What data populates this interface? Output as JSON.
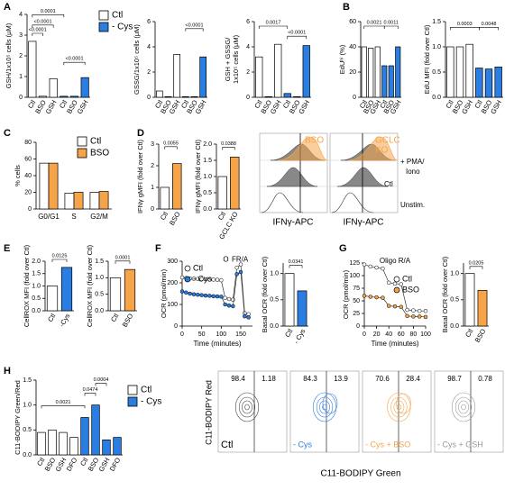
{
  "panel_labels": [
    "A",
    "B",
    "C",
    "D",
    "E",
    "F",
    "G",
    "H"
  ],
  "chart_data": [
    {
      "type": "bar",
      "ylabel": "GSH/1x10⁵ cells (μM)",
      "categories": [
        "Ctl",
        "BSO",
        "GSH",
        "Ctl",
        "BSO",
        "GSH"
      ],
      "series": [
        {
          "name": "Ctl",
          "color": "#ffffff",
          "values": [
            2.7,
            0.05,
            0.9,
            null,
            null,
            null
          ]
        },
        {
          "name": "- Cys",
          "color": "#2a7de1",
          "values": [
            null,
            null,
            null,
            0.05,
            0.05,
            0.95
          ]
        }
      ],
      "ylim": [
        0,
        4
      ],
      "yticks": [
        0,
        1,
        2,
        3,
        4
      ],
      "annotations": [
        "0.0001",
        "<0.0001",
        "<0.0001",
        "<0.0001"
      ]
    },
    {
      "type": "bar",
      "ylabel": "GSSG/1x10⁵ cells (μM)",
      "categories": [
        "Ctl",
        "BSO",
        "GSH",
        "Ctl",
        "BSO",
        "GSH"
      ],
      "series": [
        {
          "color": "#ffffff",
          "values": [
            0.5,
            0.05,
            3.4,
            null,
            null,
            null
          ]
        },
        {
          "color": "#2a7de1",
          "values": [
            null,
            null,
            null,
            0.05,
            0.05,
            3.2
          ]
        }
      ],
      "ylim": [
        0,
        6
      ],
      "yticks": [
        0,
        2,
        4,
        6
      ],
      "annotations": [
        "<0.0001"
      ]
    },
    {
      "type": "bar",
      "ylabel": [
        "GSH + GSSG/",
        "1x10⁵ cells (μM)"
      ],
      "categories": [
        "Ctl",
        "BSO",
        "GSH",
        "Ctl",
        "BSO",
        "GSH"
      ],
      "series": [
        {
          "color": "#ffffff",
          "values": [
            3.2,
            0.05,
            4.2,
            null,
            null,
            null
          ]
        },
        {
          "color": "#2a7de1",
          "values": [
            null,
            null,
            null,
            0.3,
            0.05,
            4.1
          ]
        }
      ],
      "ylim": [
        0,
        6
      ],
      "yticks": [
        0,
        2,
        4,
        6
      ],
      "annotations": [
        "0.0017",
        "<0.0001"
      ]
    },
    {
      "type": "bar",
      "ylabel": "EdUʰⁱ (%)",
      "categories": [
        "Ctl",
        "BSO",
        "GSH",
        "Ctl",
        "BSO",
        "GSH"
      ],
      "series": [
        {
          "color": "#ffffff",
          "values": [
            40,
            39,
            40,
            null,
            null,
            null
          ]
        },
        {
          "color": "#2a7de1",
          "values": [
            null,
            null,
            null,
            25,
            25,
            40
          ]
        }
      ],
      "ylim": [
        0,
        60
      ],
      "yticks": [
        0,
        20,
        40,
        60
      ],
      "annotations": [
        "0.0021",
        "0.0011"
      ]
    },
    {
      "type": "bar",
      "ylabel": "EdU MFI (fold over Ctl)",
      "categories": [
        "Ctl",
        "BSO",
        "GSH",
        "Ctl",
        "BSO",
        "GSH"
      ],
      "series": [
        {
          "color": "#ffffff",
          "values": [
            1.0,
            1.0,
            1.05,
            null,
            null,
            null
          ]
        },
        {
          "color": "#2a7de1",
          "values": [
            null,
            null,
            null,
            0.58,
            0.56,
            0.6
          ]
        }
      ],
      "ylim": [
        0,
        1.5
      ],
      "yticks": [
        {
          "value": 0,
          "label": "0.0"
        },
        0.5,
        {
          "value": 1,
          "label": "1.0"
        },
        1.5
      ],
      "annotations": [
        "0.0003",
        "0.0048"
      ]
    },
    {
      "type": "bar",
      "ylabel": "% cells",
      "categories": [
        "G0/G1",
        "S",
        "G2/M"
      ],
      "series": [
        {
          "name": "Ctl",
          "color": "#ffffff",
          "values": [
            55,
            19,
            20
          ]
        },
        {
          "name": "BSO",
          "color": "#f5a44a",
          "values": [
            55,
            20,
            21
          ]
        }
      ],
      "ylim": [
        0,
        80
      ],
      "yticks": [
        0,
        20,
        40,
        60,
        80
      ]
    },
    {
      "type": "bar",
      "ylabel": "IFNγ gMFI (fold over Ctl)",
      "categories": [
        "Ctl",
        "BSO"
      ],
      "series": [
        {
          "color": "#ffffff",
          "values": [
            1.0,
            null
          ]
        },
        {
          "color": "#f5a44a",
          "values": [
            null,
            2.1
          ]
        }
      ],
      "ylim": [
        0,
        3
      ],
      "yticks": [
        0,
        1,
        2,
        3
      ],
      "annotations": [
        "0.0055"
      ]
    },
    {
      "type": "bar",
      "ylabel": "IFNγ gMFI (fold over Ctl)",
      "categories": [
        "Ctl",
        "GCLC KO"
      ],
      "series": [
        {
          "color": "#ffffff",
          "values": [
            1.0,
            null
          ]
        },
        {
          "color": "#f5a44a",
          "values": [
            null,
            1.6
          ]
        }
      ],
      "ylim": [
        0,
        2
      ],
      "yticks": [
        {
          "value": 0,
          "label": "0.0"
        },
        0.5,
        {
          "value": 1,
          "label": "1.0"
        },
        1.5,
        {
          "value": 2,
          "label": "2.0"
        }
      ],
      "annotations": [
        "0.0388"
      ]
    },
    {
      "type": "bar",
      "ylabel": "CellROX MFI (fold over Ctl)",
      "categories": [
        "Ctl",
        "-Cys"
      ],
      "series": [
        {
          "color": "#ffffff",
          "values": [
            1.0,
            null
          ]
        },
        {
          "color": "#2a7de1",
          "values": [
            null,
            1.75
          ]
        }
      ],
      "ylim": [
        0,
        2
      ],
      "yticks": [
        {
          "value": 0,
          "label": "0.0"
        },
        0.5,
        {
          "value": 1,
          "label": "1.0"
        },
        1.5,
        {
          "value": 2,
          "label": "2.0"
        }
      ],
      "annotations": [
        "0.0125"
      ]
    },
    {
      "type": "bar",
      "ylabel": "CellROX MFI (fold over Ctl)",
      "categories": [
        "Ctl",
        "BSO"
      ],
      "series": [
        {
          "color": "#ffffff",
          "values": [
            1.0,
            null
          ]
        },
        {
          "color": "#f5a44a",
          "values": [
            null,
            1.25
          ]
        }
      ],
      "ylim": [
        0,
        1.5
      ],
      "yticks": [
        {
          "value": 0,
          "label": "0.0"
        },
        0.5,
        {
          "value": 1,
          "label": "1.0"
        },
        1.5
      ],
      "annotations": [
        "0.0001"
      ]
    },
    {
      "type": "line",
      "ylabel": "OCR (pmol/min)",
      "xlabel": "Time (minutes)",
      "x": [
        0,
        10,
        20,
        30,
        40,
        50,
        60,
        70,
        80,
        90,
        100,
        110,
        120,
        130,
        140,
        150,
        160,
        170
      ],
      "series": [
        {
          "name": "Ctl",
          "color": "#ffffff",
          "values": [
            225,
            222,
            220,
            219,
            218,
            217,
            216,
            215,
            215,
            214,
            212,
            130,
            125,
            122,
            270,
            285,
            60,
            55
          ]
        },
        {
          "name": "- Cys",
          "color": "#2a7de1",
          "values": [
            160,
            155,
            150,
            147,
            145,
            143,
            141,
            140,
            138,
            137,
            136,
            100,
            95,
            92,
            240,
            250,
            45,
            40
          ]
        }
      ],
      "xlim": [
        0,
        180
      ],
      "xticks": [
        0,
        50,
        100,
        150
      ],
      "ylim": [
        0,
        300
      ],
      "yticks": [
        0,
        100,
        200,
        300
      ],
      "annotations": [
        "O",
        "FR/A"
      ]
    },
    {
      "type": "bar",
      "ylabel": "Basal OCR (fold over Ctl)",
      "categories": [
        "Ctl",
        "- Cys"
      ],
      "series": [
        {
          "color": "#ffffff",
          "values": [
            1.0,
            null
          ]
        },
        {
          "color": "#2a7de1",
          "values": [
            null,
            0.67
          ]
        }
      ],
      "ylim": [
        0,
        1.2
      ],
      "yticks": [
        {
          "value": 0,
          "label": "0.0"
        },
        0.5,
        {
          "value": 1,
          "label": "1.0"
        }
      ],
      "annotations": [
        "0.0341"
      ]
    },
    {
      "type": "line",
      "ylabel": "OCR (pmol/min)",
      "xlabel": "Time (minutes)",
      "x": [
        0,
        10,
        20,
        30,
        40,
        50,
        60,
        70,
        80,
        90,
        100
      ],
      "series": [
        {
          "name": "Ctl",
          "color": "#ffffff",
          "values": [
            122,
            118,
            116,
            114,
            86,
            84,
            83,
            32,
            31,
            30,
            30
          ]
        },
        {
          "name": "BSO",
          "color": "#f5a44a",
          "values": [
            60,
            58,
            57,
            56,
            40,
            39,
            38,
            20,
            19,
            19,
            18
          ]
        }
      ],
      "xlim": [
        0,
        100
      ],
      "xticks": [
        0,
        20,
        40,
        60,
        80,
        100
      ],
      "ylim": [
        0,
        125
      ],
      "yticks": [
        0,
        25,
        50,
        75,
        100,
        125
      ],
      "annotations": [
        "Oligo R/A"
      ]
    },
    {
      "type": "bar",
      "ylabel": "Basal OCR (fold over Ctl)",
      "categories": [
        "Ctl",
        "BSO"
      ],
      "series": [
        {
          "color": "#ffffff",
          "values": [
            1.0,
            null
          ]
        },
        {
          "color": "#f5a44a",
          "values": [
            null,
            0.68
          ]
        }
      ],
      "ylim": [
        0,
        1.2
      ],
      "yticks": [
        {
          "value": 0,
          "label": "0.0"
        },
        0.5,
        {
          "value": 1,
          "label": "1.0"
        }
      ],
      "annotations": [
        "0.0205"
      ]
    },
    {
      "type": "bar",
      "ylabel": "C11-BODIPY Green/Red",
      "categories": [
        "Ctl",
        "BSO",
        "GSH",
        "DFO",
        "Ctl",
        "BSO",
        "GSH",
        "DFO"
      ],
      "series": [
        {
          "name": "Ctl",
          "color": "#ffffff",
          "values": [
            0.45,
            0.5,
            0.45,
            0.35,
            null,
            null,
            null,
            null
          ]
        },
        {
          "name": "- Cys",
          "color": "#2a7de1",
          "values": [
            null,
            null,
            null,
            null,
            0.75,
            1.0,
            0.3,
            0.35
          ]
        }
      ],
      "ylim": [
        0,
        1.5
      ],
      "yticks": [
        {
          "value": 0,
          "label": "0.0"
        },
        0.5,
        {
          "value": 1,
          "label": "1.0"
        },
        1.5
      ],
      "annotations": [
        "0.0021",
        "0.0474",
        "0.0004"
      ]
    }
  ],
  "flow_histograms": {
    "panels": [
      {
        "label": [
          "BSO"
        ],
        "color": "#f5a44a"
      },
      {
        "label": [
          "GCLC",
          "KO"
        ],
        "color": "#f5a44a"
      }
    ],
    "stim_label": [
      "+ PMA/",
      "Iono"
    ],
    "ctl_label": "Ctl",
    "unstim_label": "Unstim.",
    "x_label": "IFNγ-APC"
  },
  "flow_contours": {
    "panels": [
      {
        "label": "Ctl",
        "color": "#000000",
        "quadrants": [
          98.4,
          1.18
        ]
      },
      {
        "label": "- Cys",
        "color": "#2a7de1",
        "quadrants": [
          84.3,
          13.9
        ]
      },
      {
        "label": "- Cys + BSO",
        "color": "#f5a44a",
        "quadrants": [
          70.6,
          28.4
        ]
      },
      {
        "label": "- Cys + GSH",
        "color": "#999999",
        "quadrants": [
          98.7,
          0.78
        ]
      }
    ],
    "y_label": "C11-BODIPY Red",
    "x_label": "C11-BODIPY Green"
  }
}
